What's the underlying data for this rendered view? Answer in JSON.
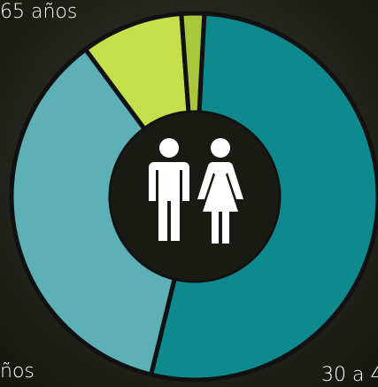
{
  "chart_data": {
    "type": "donut",
    "categories": [
      "30 a 4",
      "ños",
      "65 años",
      null
    ],
    "values": [
      53,
      36,
      9,
      2
    ],
    "colors": [
      "#0e8a8f",
      "#5cb0b6",
      "#c6e04c",
      "#a9c83c"
    ]
  }
}
